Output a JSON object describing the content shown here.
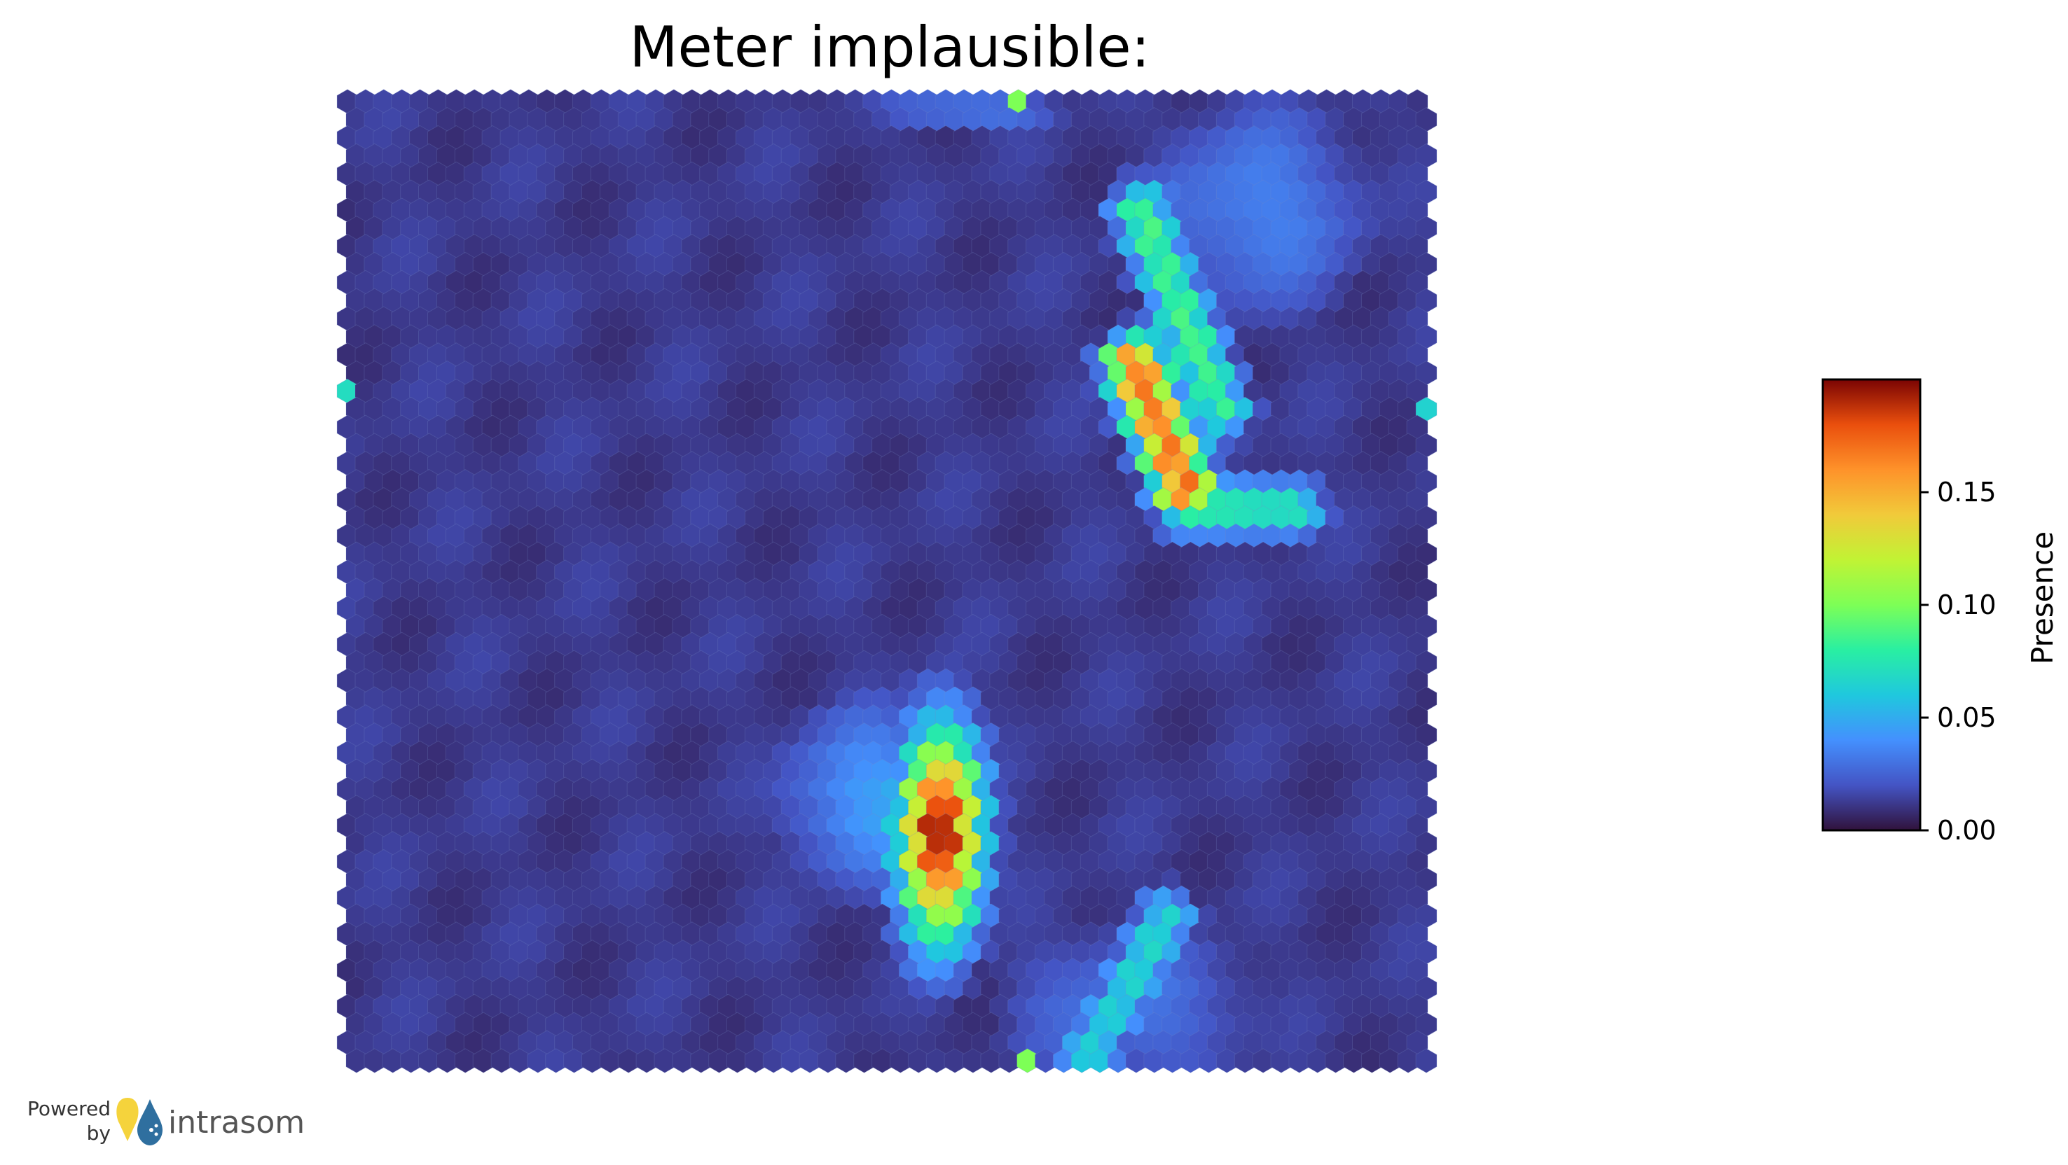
{
  "chart_data": {
    "type": "heatmap",
    "subtype": "hexagonal-som-grid",
    "title": "Meter implausible:",
    "grid": {
      "columns": 60,
      "rows": 54
    },
    "colormap": "turbo",
    "colorbar": {
      "label": "Presence",
      "min": 0.0,
      "max": 0.2,
      "ticks": [
        "0.00",
        "0.05",
        "0.10",
        "0.15"
      ],
      "tick_values": [
        0.0,
        0.05,
        0.1,
        0.15
      ]
    },
    "background_value": 0.012,
    "regions": [
      {
        "name": "lower-hotspot",
        "center": [
          32.5,
          40.5
        ],
        "spread": [
          1.6,
          4.2
        ],
        "peak": 0.2
      },
      {
        "name": "lower-hotspot-halo",
        "center": [
          29,
          38.5
        ],
        "spread": [
          4,
          4
        ],
        "peak": 0.045
      },
      {
        "name": "diagonal-ridge",
        "from": [
          43.2,
          14.5
        ],
        "to": [
          46,
          21.5
        ],
        "peak": 0.17
      },
      {
        "name": "ridge-bottom-arm",
        "from": [
          46,
          22.5
        ],
        "to": [
          52,
          22.5
        ],
        "peak": 0.08
      },
      {
        "name": "upper-green-band",
        "from": [
          43.5,
          6
        ],
        "to": [
          48,
          17
        ],
        "peak": 0.085
      },
      {
        "name": "upper-right-blue",
        "center": [
          50,
          6
        ],
        "spread": [
          5,
          5
        ],
        "peak": 0.035
      },
      {
        "name": "top-edge-blue",
        "center": [
          34,
          0.5
        ],
        "spread": [
          4,
          1
        ],
        "peak": 0.035
      },
      {
        "name": "bottom-cyan-stripe",
        "from": [
          40,
          54
        ],
        "to": [
          45,
          45
        ],
        "peak": 0.065
      },
      {
        "name": "bottom-blue-field",
        "center": [
          43,
          50
        ],
        "spread": [
          6,
          4
        ],
        "peak": 0.03
      }
    ],
    "outliers": [
      {
        "col": 37,
        "row": 0,
        "value": 0.1
      },
      {
        "col": 0,
        "row": 16,
        "value": 0.07
      },
      {
        "col": 59,
        "row": 17,
        "value": 0.065
      },
      {
        "col": 37,
        "row": 53,
        "value": 0.1
      }
    ]
  },
  "footer": {
    "powered": "Powered",
    "by": "by",
    "brand": "intrasom"
  }
}
